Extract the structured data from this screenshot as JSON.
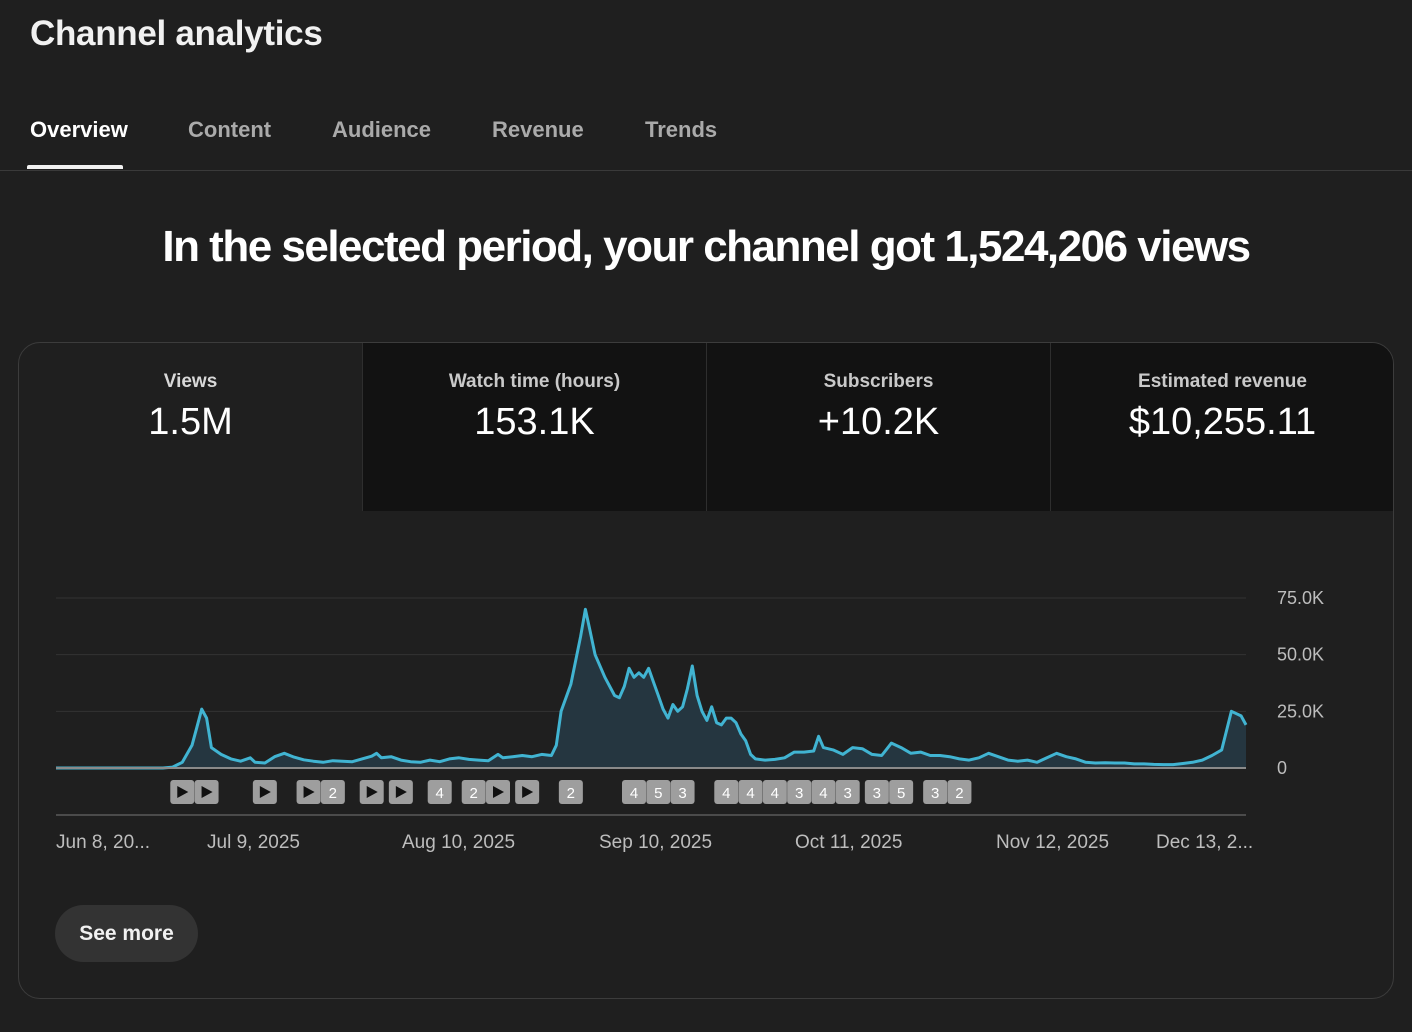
{
  "header": {
    "title": "Channel analytics"
  },
  "tabs": [
    {
      "label": "Overview",
      "active": true
    },
    {
      "label": "Content"
    },
    {
      "label": "Audience"
    },
    {
      "label": "Revenue"
    },
    {
      "label": "Trends"
    }
  ],
  "headline": "In the selected period, your channel got 1,524,206 views",
  "metrics": [
    {
      "label": "Views",
      "value": "1.5M",
      "selected": true
    },
    {
      "label": "Watch time (hours)",
      "value": "153.1K"
    },
    {
      "label": "Subscribers",
      "value": "+10.2K"
    },
    {
      "label": "Estimated revenue",
      "value": "$10,255.11"
    }
  ],
  "colors": {
    "background": "#1f1f1f",
    "line": "#41b4d2",
    "area": "#253640",
    "marker": "#9e9e9e"
  },
  "chart_data": {
    "type": "area",
    "ylim": [
      0,
      75000
    ],
    "y_tick_labels": [
      "0",
      "25.0K",
      "50.0K",
      "75.0K"
    ],
    "x_tick_labels": [
      "Jun 8, 20...",
      "Jul 9, 2025",
      "Aug 10, 2025",
      "Sep 10, 2025",
      "Oct 11, 2025",
      "Nov 12, 2025",
      "Dec 13, 2..."
    ],
    "x_start": "2025-06-08",
    "x_end": "2025-12-27",
    "series": [
      {
        "values": [
          [
            "2025-06-08",
            0
          ],
          [
            "2025-06-20",
            0
          ],
          [
            "2025-06-30",
            0
          ],
          [
            "2025-07-02",
            400
          ],
          [
            "2025-07-04",
            2500
          ],
          [
            "2025-07-06",
            10000
          ],
          [
            "2025-07-07",
            18000
          ],
          [
            "2025-07-08",
            26000
          ],
          [
            "2025-07-09",
            22000
          ],
          [
            "2025-07-10",
            9000
          ],
          [
            "2025-07-12",
            6000
          ],
          [
            "2025-07-14",
            4000
          ],
          [
            "2025-07-16",
            3000
          ],
          [
            "2025-07-18",
            4500
          ],
          [
            "2025-07-19",
            2500
          ],
          [
            "2025-07-21",
            2200
          ],
          [
            "2025-07-23",
            5000
          ],
          [
            "2025-07-25",
            6500
          ],
          [
            "2025-07-27",
            4800
          ],
          [
            "2025-07-29",
            3600
          ],
          [
            "2025-07-31",
            3000
          ],
          [
            "2025-08-02",
            2500
          ],
          [
            "2025-08-04",
            3200
          ],
          [
            "2025-08-06",
            3000
          ],
          [
            "2025-08-08",
            2800
          ],
          [
            "2025-08-10",
            4000
          ],
          [
            "2025-08-12",
            5200
          ],
          [
            "2025-08-13",
            6500
          ],
          [
            "2025-08-14",
            4500
          ],
          [
            "2025-08-16",
            5000
          ],
          [
            "2025-08-18",
            3500
          ],
          [
            "2025-08-20",
            2800
          ],
          [
            "2025-08-22",
            2500
          ],
          [
            "2025-08-24",
            3500
          ],
          [
            "2025-08-26",
            2800
          ],
          [
            "2025-08-28",
            4000
          ],
          [
            "2025-08-30",
            4500
          ],
          [
            "2025-09-01",
            3800
          ],
          [
            "2025-09-03",
            3500
          ],
          [
            "2025-09-05",
            3200
          ],
          [
            "2025-09-07",
            6000
          ],
          [
            "2025-09-08",
            4500
          ],
          [
            "2025-09-10",
            5000
          ],
          [
            "2025-09-12",
            5500
          ],
          [
            "2025-09-14",
            5000
          ],
          [
            "2025-09-16",
            6000
          ],
          [
            "2025-09-18",
            5500
          ],
          [
            "2025-09-19",
            10000
          ],
          [
            "2025-09-20",
            25000
          ],
          [
            "2025-09-22",
            37000
          ],
          [
            "2025-09-24",
            58000
          ],
          [
            "2025-09-25",
            70000
          ],
          [
            "2025-09-26",
            60000
          ],
          [
            "2025-09-27",
            50000
          ],
          [
            "2025-09-29",
            40000
          ],
          [
            "2025-10-01",
            32000
          ],
          [
            "2025-10-02",
            31000
          ],
          [
            "2025-10-03",
            36000
          ],
          [
            "2025-10-04",
            44000
          ],
          [
            "2025-10-05",
            40000
          ],
          [
            "2025-10-06",
            42000
          ],
          [
            "2025-10-07",
            40000
          ],
          [
            "2025-10-08",
            44000
          ],
          [
            "2025-10-09",
            38000
          ],
          [
            "2025-10-10",
            32000
          ],
          [
            "2025-10-11",
            26000
          ],
          [
            "2025-10-12",
            22000
          ],
          [
            "2025-10-13",
            28000
          ],
          [
            "2025-10-14",
            25000
          ],
          [
            "2025-10-15",
            27000
          ],
          [
            "2025-10-16",
            35000
          ],
          [
            "2025-10-17",
            45000
          ],
          [
            "2025-10-18",
            32000
          ],
          [
            "2025-10-19",
            25000
          ],
          [
            "2025-10-20",
            21000
          ],
          [
            "2025-10-21",
            27000
          ],
          [
            "2025-10-22",
            20000
          ],
          [
            "2025-10-23",
            19000
          ],
          [
            "2025-10-24",
            22000
          ],
          [
            "2025-10-25",
            22000
          ],
          [
            "2025-10-26",
            20000
          ],
          [
            "2025-10-27",
            15000
          ],
          [
            "2025-10-28",
            12000
          ],
          [
            "2025-10-29",
            6000
          ],
          [
            "2025-10-30",
            4000
          ],
          [
            "2025-11-01",
            3500
          ],
          [
            "2025-11-03",
            3800
          ],
          [
            "2025-11-05",
            4500
          ],
          [
            "2025-11-07",
            7000
          ],
          [
            "2025-11-09",
            7000
          ],
          [
            "2025-11-11",
            7500
          ],
          [
            "2025-11-12",
            14000
          ],
          [
            "2025-11-13",
            9000
          ],
          [
            "2025-11-15",
            8000
          ],
          [
            "2025-11-17",
            6000
          ],
          [
            "2025-11-19",
            9000
          ],
          [
            "2025-11-21",
            8500
          ],
          [
            "2025-11-23",
            6000
          ],
          [
            "2025-11-25",
            5500
          ],
          [
            "2025-11-27",
            11000
          ],
          [
            "2025-11-29",
            9000
          ],
          [
            "2025-12-01",
            6500
          ],
          [
            "2025-12-03",
            7000
          ],
          [
            "2025-12-05",
            5500
          ],
          [
            "2025-12-07",
            5500
          ],
          [
            "2025-12-09",
            5000
          ],
          [
            "2025-12-11",
            4000
          ],
          [
            "2025-12-13",
            3500
          ],
          [
            "2025-12-15",
            4500
          ],
          [
            "2025-12-17",
            6500
          ],
          [
            "2025-12-19",
            5000
          ],
          [
            "2025-12-21",
            3500
          ],
          [
            "2025-12-23",
            3000
          ],
          [
            "2025-12-25",
            3500
          ],
          [
            "2025-12-27",
            2500
          ],
          [
            "2025-12-29",
            4500
          ],
          [
            "2025-12-31",
            6500
          ],
          [
            "2026-01-02",
            5000
          ],
          [
            "2026-01-04",
            4000
          ],
          [
            "2026-01-06",
            2500
          ],
          [
            "2026-01-08",
            2200
          ],
          [
            "2026-01-10",
            2300
          ],
          [
            "2026-01-12",
            2200
          ],
          [
            "2026-01-14",
            2200
          ],
          [
            "2026-01-16",
            1800
          ],
          [
            "2026-01-18",
            1800
          ],
          [
            "2026-01-20",
            1600
          ],
          [
            "2026-01-22",
            1500
          ],
          [
            "2026-01-24",
            1500
          ],
          [
            "2026-01-26",
            2000
          ],
          [
            "2026-01-28",
            2500
          ],
          [
            "2026-01-30",
            3500
          ],
          [
            "2026-02-01",
            5500
          ],
          [
            "2026-02-03",
            8000
          ],
          [
            "2026-02-05",
            25000
          ],
          [
            "2026-02-07",
            23000
          ],
          [
            "2026-02-08",
            19000
          ]
        ]
      }
    ],
    "markers": [
      {
        "date": "2025-07-04",
        "label": "▶"
      },
      {
        "date": "2025-07-09",
        "label": "▶"
      },
      {
        "date": "2025-07-21",
        "label": "▶"
      },
      {
        "date": "2025-07-30",
        "label": "▶"
      },
      {
        "date": "2025-08-04",
        "label": "2"
      },
      {
        "date": "2025-08-12",
        "label": "▶"
      },
      {
        "date": "2025-08-18",
        "label": "▶"
      },
      {
        "date": "2025-08-26",
        "label": "4"
      },
      {
        "date": "2025-09-02",
        "label": "2"
      },
      {
        "date": "2025-09-07",
        "label": "▶"
      },
      {
        "date": "2025-09-13",
        "label": "▶"
      },
      {
        "date": "2025-09-22",
        "label": "2"
      },
      {
        "date": "2025-10-05",
        "label": "4"
      },
      {
        "date": "2025-10-10",
        "label": "5"
      },
      {
        "date": "2025-10-15",
        "label": "3"
      },
      {
        "date": "2025-10-24",
        "label": "4"
      },
      {
        "date": "2025-10-29",
        "label": "4"
      },
      {
        "date": "2025-11-03",
        "label": "4"
      },
      {
        "date": "2025-11-08",
        "label": "3"
      },
      {
        "date": "2025-11-13",
        "label": "4"
      },
      {
        "date": "2025-11-18",
        "label": "3"
      },
      {
        "date": "2025-11-24",
        "label": "3"
      },
      {
        "date": "2025-11-29",
        "label": "5"
      },
      {
        "date": "2025-12-06",
        "label": "3"
      },
      {
        "date": "2025-12-11",
        "label": "2"
      }
    ]
  },
  "actions": {
    "see_more": "See more"
  }
}
